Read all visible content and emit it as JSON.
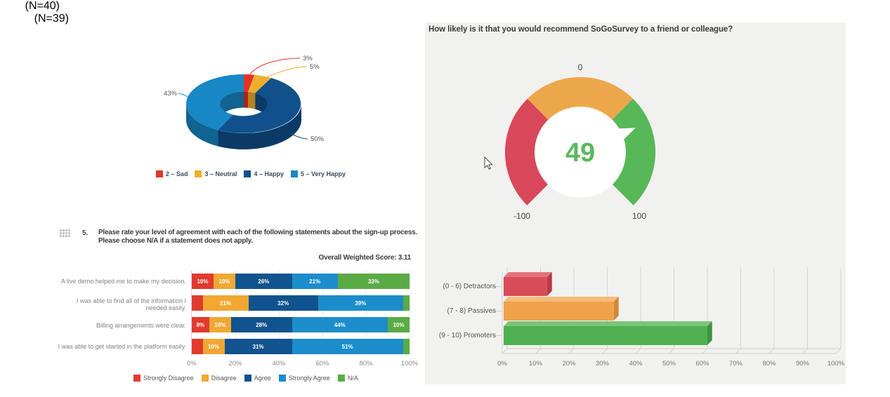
{
  "left_panel": {
    "donut": {
      "n_label": "(N=40)"
    },
    "question": {
      "number": "5.",
      "line1": "Please rate your level of agreement with each of the following statements about the sign-up process.",
      "line2": "Please choose N/A if a statement does not apply."
    },
    "score_label": "Overall Weighted Score: 3.11"
  },
  "right_panel": {
    "title": "How likely is it that you would recommend SoGoSurvey to a friend or colleague?",
    "nps": {
      "n_label": "(N=39)"
    }
  },
  "chart_data": [
    {
      "id": "satisfaction_donut",
      "type": "pie",
      "style": "3d_donut",
      "n_label": "(N=40)",
      "legend_position": "bottom",
      "slices": [
        {
          "label": "2 – Sad",
          "pct": 3,
          "pct_label": "3%",
          "color": "#e5332a",
          "dark": "#a8241e"
        },
        {
          "label": "3 – Neutral",
          "pct": 5,
          "pct_label": "5%",
          "color": "#efaf2d",
          "dark": "#b7831c"
        },
        {
          "label": "4 – Happy",
          "pct": 50,
          "pct_label": "50%",
          "color": "#10518c",
          "dark": "#0b3a66"
        },
        {
          "label": "5 – Very Happy",
          "pct": 43,
          "pct_label": "43%",
          "color": "#1787c6",
          "dark": "#116390"
        }
      ]
    },
    {
      "id": "nps_gauge",
      "type": "gauge",
      "title": "How likely is it that you would recommend SoGoSurvey to a friend or colleague?",
      "value": 49,
      "min": -100,
      "max": 100,
      "min_label": "-100",
      "mid_label": "0",
      "max_label": "100",
      "value_color": "#5cb85c",
      "segments": [
        {
          "from": -100,
          "to": -33,
          "color": "#d9485a"
        },
        {
          "from": -33,
          "to": 33,
          "color": "#eda74b"
        },
        {
          "from": 33,
          "to": 100,
          "color": "#57b857"
        }
      ]
    },
    {
      "id": "agreement_stacked",
      "type": "bar",
      "style": "horizontal_stacked",
      "question_number": "5.",
      "overall_weighted_score": 3.11,
      "categories": [
        "A live demo helped me to make my decision.",
        "I was able to find all of the information I needed easily.",
        "Billing arrangements were clear.",
        "I was able to get started in the platform easily."
      ],
      "series": [
        {
          "name": "Strongly Disagree",
          "color": "#e23a2e",
          "values": [
            10,
            5,
            8,
            5
          ]
        },
        {
          "name": "Disagree",
          "color": "#f0a832",
          "values": [
            10,
            21,
            10,
            10
          ]
        },
        {
          "name": "Agree",
          "color": "#11538e",
          "values": [
            26,
            32,
            28,
            31
          ]
        },
        {
          "name": "Strongly Agree",
          "color": "#1c8dcb",
          "values": [
            21,
            39,
            44,
            51
          ]
        },
        {
          "name": "N/A",
          "color": "#5aab46",
          "values": [
            33,
            3,
            10,
            3
          ]
        }
      ],
      "x_ticks": [
        "0%",
        "20%",
        "40%",
        "60%",
        "80%",
        "100%"
      ],
      "xlim": [
        0,
        100
      ],
      "label_min_pct": 8
    },
    {
      "id": "nps_bars",
      "type": "bar",
      "style": "3d_horizontal",
      "n_label": "(N=39)",
      "categories": [
        "(0 - 6) Detractors",
        "(7 - 8) Passives",
        "(9 - 10) Promoters"
      ],
      "values": [
        13,
        33,
        61
      ],
      "colors": [
        {
          "front": "#d94c59",
          "top": "#e2737d",
          "side": "#b93a47"
        },
        {
          "front": "#f0a24b",
          "top": "#f5bc79",
          "side": "#d28739"
        },
        {
          "front": "#4fb04f",
          "top": "#7ac57a",
          "side": "#3d9440"
        }
      ],
      "x_ticks": [
        "0%",
        "10%",
        "20%",
        "30%",
        "40%",
        "50%",
        "60%",
        "70%",
        "80%",
        "90%",
        "100%"
      ],
      "xlim": [
        0,
        100
      ],
      "grid": true
    }
  ]
}
